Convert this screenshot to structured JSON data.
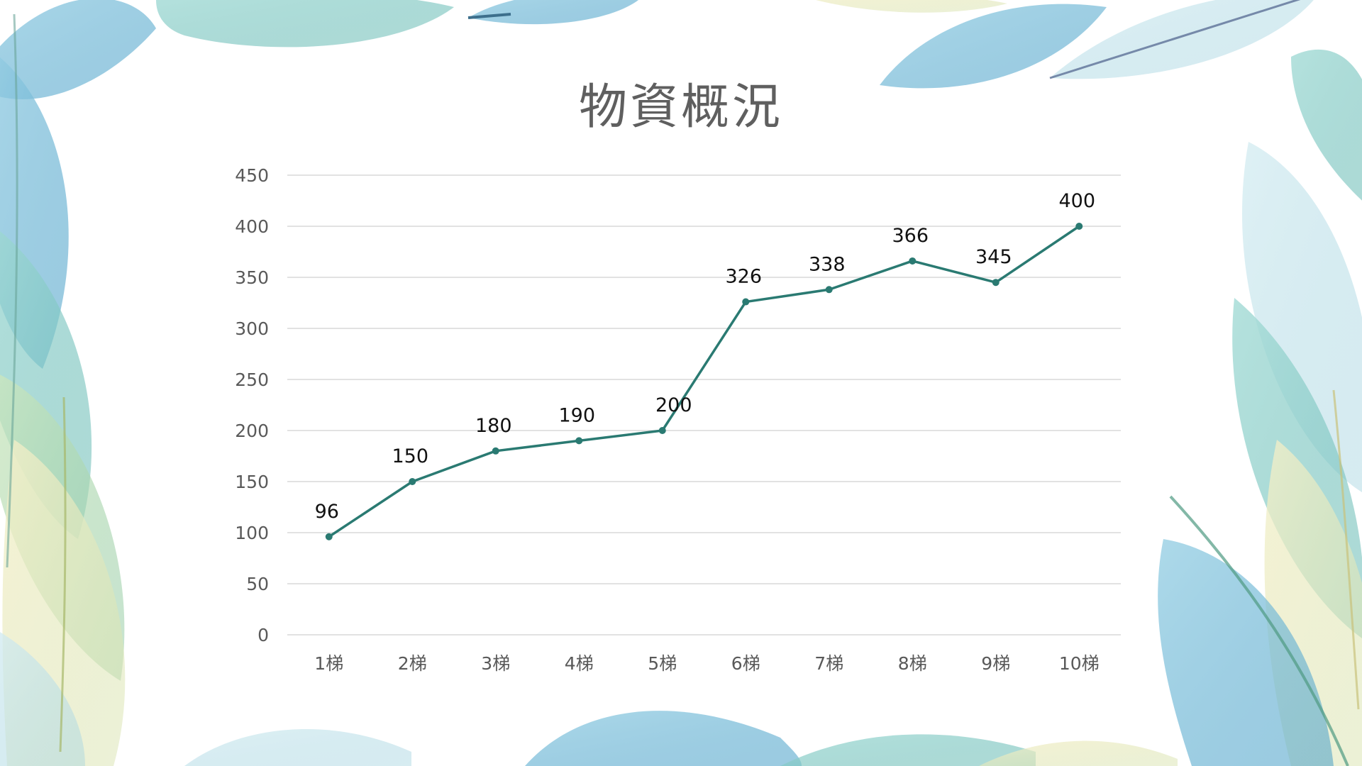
{
  "slide": {
    "title": "物資概況",
    "background": "#ffffff",
    "decoration": "translucent-leaves-border"
  },
  "chart_data": {
    "type": "line",
    "title": "物資概況",
    "xlabel": "",
    "ylabel": "",
    "categories": [
      "1梯",
      "2梯",
      "3梯",
      "4梯",
      "5梯",
      "6梯",
      "7梯",
      "8梯",
      "9梯",
      "10梯"
    ],
    "series": [
      {
        "values": [
          96,
          150,
          180,
          190,
          200,
          326,
          338,
          366,
          345,
          400
        ],
        "color": "#2a7a72"
      }
    ],
    "ylim": [
      0,
      450
    ],
    "yticks": [
      0,
      50,
      100,
      150,
      200,
      250,
      300,
      350,
      400,
      450
    ],
    "grid": true,
    "legend": "none",
    "data_labels": true,
    "colors": {
      "line": "#2a7a72",
      "grid": "#d9d9d9",
      "tick_text": "#595959",
      "label_text": "#111111"
    }
  }
}
